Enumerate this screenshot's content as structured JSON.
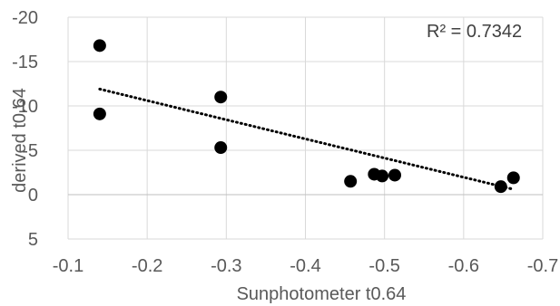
{
  "chart_data": {
    "type": "scatter",
    "title": "",
    "xlabel": "Sunphotometer t0.64",
    "ylabel": "derived t0.64",
    "xlim": [
      -0.1,
      -0.7
    ],
    "ylim": [
      -20,
      5
    ],
    "x_ticks": [
      "-0.1",
      "-0.2",
      "-0.3",
      "-0.4",
      "-0.5",
      "-0.6",
      "-0.7"
    ],
    "y_ticks": [
      "-20",
      "-15",
      "-10",
      "-5",
      "0",
      "5"
    ],
    "grid": true,
    "points": [
      {
        "x": -0.14,
        "y": -16.8
      },
      {
        "x": -0.14,
        "y": -9.1
      },
      {
        "x": -0.293,
        "y": -11.0
      },
      {
        "x": -0.293,
        "y": -5.3
      },
      {
        "x": -0.457,
        "y": -1.5
      },
      {
        "x": -0.487,
        "y": -2.3
      },
      {
        "x": -0.497,
        "y": -2.1
      },
      {
        "x": -0.513,
        "y": -2.2
      },
      {
        "x": -0.647,
        "y": -0.9
      },
      {
        "x": -0.663,
        "y": -1.9
      }
    ],
    "trendline": {
      "style": "dotted",
      "x": [
        -0.14,
        -0.663
      ],
      "y": [
        -11.9,
        -0.6
      ]
    },
    "annotation": "R² = 0.7342",
    "point_color": "#000000"
  }
}
